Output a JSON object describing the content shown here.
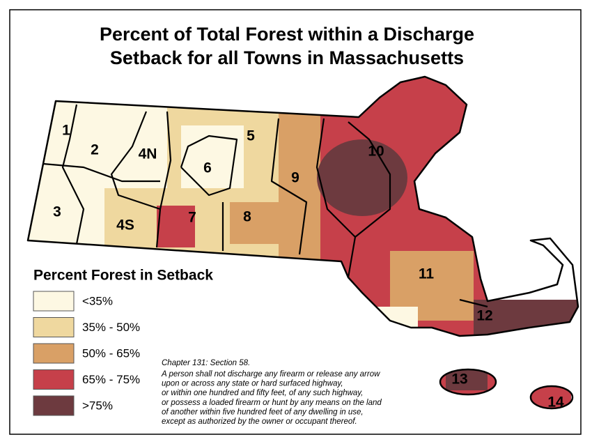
{
  "title": [
    "Percent of Total Forest within a Discharge",
    "Setback for all Towns in Massachusetts"
  ],
  "legend": {
    "title": "Percent Forest in Setback",
    "items": [
      {
        "label": "<35%",
        "color": "#fdf8e3"
      },
      {
        "label": "35% - 50%",
        "color": "#efd89f"
      },
      {
        "label": "50% - 65%",
        "color": "#d9a066"
      },
      {
        "label": "65% - 75%",
        "color": "#c6404a"
      },
      {
        "label": ">75%",
        "color": "#6d3a3f"
      }
    ]
  },
  "regions": [
    "1",
    "2",
    "3",
    "4N",
    "4S",
    "5",
    "6",
    "7",
    "8",
    "9",
    "10",
    "11",
    "12",
    "13",
    "14"
  ],
  "note": {
    "heading": "Chapter 131: Section 58.",
    "lines": [
      "A person shall not discharge any firearm or release any arrow",
      "upon or across any state or hard surfaced highway,",
      "or within one hundred and fifty feet, of any such highway,",
      "or possess a loaded firearm or hunt by any means on the land",
      "of another within five hundred feet of any dwelling in use,",
      "except as authorized by the owner or occupant thereof."
    ]
  }
}
